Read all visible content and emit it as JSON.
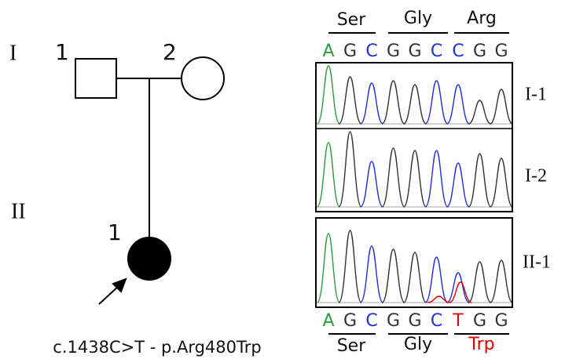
{
  "pedigree": {
    "generations": [
      {
        "label": "I",
        "members": [
          {
            "label": "1"
          },
          {
            "label": "2"
          }
        ]
      },
      {
        "label": "II",
        "members": [
          {
            "label": "1"
          }
        ]
      }
    ],
    "variant": "c.1438C>T - p.Arg480Trp"
  },
  "chromatogram": {
    "reference": {
      "codons": [
        "Ser",
        "Gly",
        "Arg"
      ],
      "bases": [
        "A",
        "G",
        "C",
        "G",
        "G",
        "C",
        "C",
        "G",
        "G"
      ]
    },
    "samples": [
      "I-1",
      "I-2",
      "II-1"
    ],
    "proband": {
      "bases": [
        "A",
        "G",
        "C",
        "G",
        "G",
        "C",
        "T",
        "G",
        "G"
      ],
      "codons": [
        "Ser",
        "Gly",
        "Trp"
      ]
    }
  }
}
